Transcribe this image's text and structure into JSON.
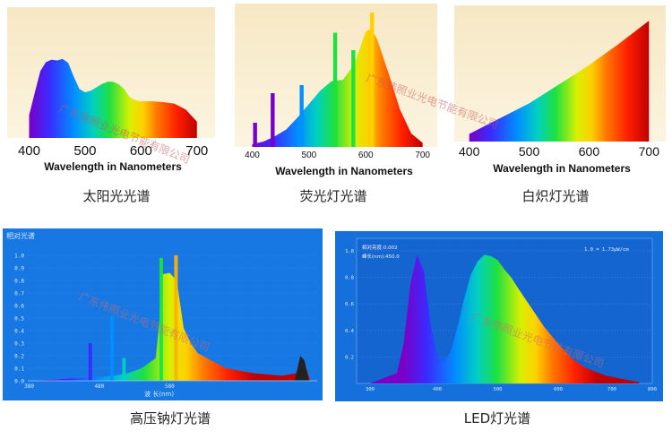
{
  "panels": [
    {
      "id": "sun",
      "caption": "太阳光光谱",
      "xlabel": "Wavelength in Nanometers",
      "ticks": [
        "400",
        "500",
        "600",
        "700"
      ],
      "chart_data": {
        "type": "area",
        "x": [
          400,
          410,
          420,
          430,
          440,
          450,
          460,
          470,
          480,
          490,
          500,
          510,
          520,
          530,
          540,
          550,
          560,
          570,
          580,
          590,
          600,
          620,
          640,
          660,
          680,
          700
        ],
        "y": [
          0.28,
          0.55,
          0.82,
          0.93,
          0.96,
          0.95,
          0.97,
          0.92,
          0.75,
          0.6,
          0.56,
          0.58,
          0.62,
          0.66,
          0.69,
          0.69,
          0.66,
          0.6,
          0.5,
          0.46,
          0.45,
          0.45,
          0.44,
          0.42,
          0.35,
          0.2
        ],
        "xlim": [
          380,
          710
        ],
        "xlabel": "Wavelength in Nanometers"
      }
    },
    {
      "id": "fluorescent",
      "caption": "荧光灯光谱",
      "xlabel": "Wavelength in Nanometers",
      "ticks": [
        "400",
        "500",
        "600",
        "700"
      ],
      "chart_data": {
        "type": "area",
        "x": [
          400,
          420,
          440,
          460,
          480,
          500,
          520,
          540,
          560,
          580,
          600,
          610,
          620,
          640,
          660,
          680,
          700
        ],
        "y": [
          0.02,
          0.04,
          0.08,
          0.13,
          0.22,
          0.32,
          0.42,
          0.49,
          0.5,
          0.62,
          0.86,
          0.88,
          0.8,
          0.55,
          0.28,
          0.1,
          0.03
        ],
        "peaks": [
          [
            405,
            0.18
          ],
          [
            436,
            0.4
          ],
          [
            487,
            0.46
          ],
          [
            546,
            0.85
          ],
          [
            578,
            0.72
          ],
          [
            611,
            1.0
          ]
        ],
        "xlim": [
          385,
          710
        ],
        "xlabel": "Wavelength in Nanometers"
      }
    },
    {
      "id": "incandescent",
      "caption": "白炽灯光谱",
      "xlabel": "Wavelength in Nanometers",
      "ticks": [
        "400",
        "500",
        "600",
        "700"
      ],
      "chart_data": {
        "type": "area",
        "x": [
          400,
          450,
          500,
          550,
          600,
          650,
          700
        ],
        "y": [
          0.06,
          0.18,
          0.3,
          0.45,
          0.6,
          0.77,
          0.95
        ],
        "xlim": [
          390,
          710
        ],
        "xlabel": "Wavelength in Nanometers"
      }
    },
    {
      "id": "sodium",
      "caption": "高压钠灯光谱",
      "header": "相对光谱",
      "yticks": [
        "1.0",
        "0.9",
        "0.8",
        "0.7",
        "0.6",
        "0.5",
        "0.4",
        "0.3",
        "0.2",
        "0.1",
        "0.0"
      ],
      "xticks": [
        "380",
        "480",
        "580"
      ],
      "xlabel": "波 长(nm)",
      "chart_data": {
        "type": "area",
        "x": [
          380,
          420,
          440,
          460,
          480,
          500,
          520,
          540,
          560,
          565,
          570,
          580,
          590,
          600,
          610,
          620,
          640,
          660,
          680,
          700,
          740,
          760,
          770,
          780
        ],
        "y": [
          0.0,
          0.01,
          0.02,
          0.02,
          0.03,
          0.04,
          0.06,
          0.1,
          0.18,
          0.45,
          0.85,
          0.86,
          0.8,
          0.42,
          0.3,
          0.22,
          0.16,
          0.1,
          0.08,
          0.06,
          0.04,
          0.06,
          0.18,
          0.0
        ],
        "peaks": [
          [
            467,
            0.3
          ],
          [
            498,
            0.52
          ],
          [
            515,
            0.18
          ],
          [
            568,
            0.98
          ],
          [
            589,
            1.0
          ]
        ],
        "xlim": [
          378,
          790
        ],
        "ylim": [
          0,
          1
        ]
      }
    },
    {
      "id": "led",
      "caption": "LED灯光谱",
      "legend1": "相对亮度:0.002",
      "legend2": "峰长(nm):450.0",
      "note": "1.0 = 1.73μW/cm",
      "yticks": [
        "1.0",
        "0.8",
        "0.6",
        "0.4",
        "0.2"
      ],
      "xticks": [
        "300",
        "400",
        "500",
        "600",
        "700",
        "800"
      ],
      "chart_data": {
        "type": "area",
        "x": [
          380,
          420,
          430,
          440,
          450,
          460,
          470,
          480,
          490,
          500,
          510,
          520,
          530,
          540,
          550,
          560,
          570,
          580,
          590,
          600,
          620,
          640,
          660,
          680,
          700,
          730,
          760,
          780
        ],
        "y": [
          0.0,
          0.08,
          0.3,
          0.75,
          0.97,
          0.85,
          0.45,
          0.22,
          0.17,
          0.24,
          0.42,
          0.64,
          0.82,
          0.92,
          0.97,
          0.96,
          0.93,
          0.86,
          0.8,
          0.72,
          0.57,
          0.42,
          0.3,
          0.19,
          0.12,
          0.06,
          0.03,
          0.01
        ],
        "xlim": [
          360,
          800
        ],
        "ylim": [
          0,
          1
        ]
      }
    }
  ],
  "watermark": "广东伟照业光电节能有限公司"
}
